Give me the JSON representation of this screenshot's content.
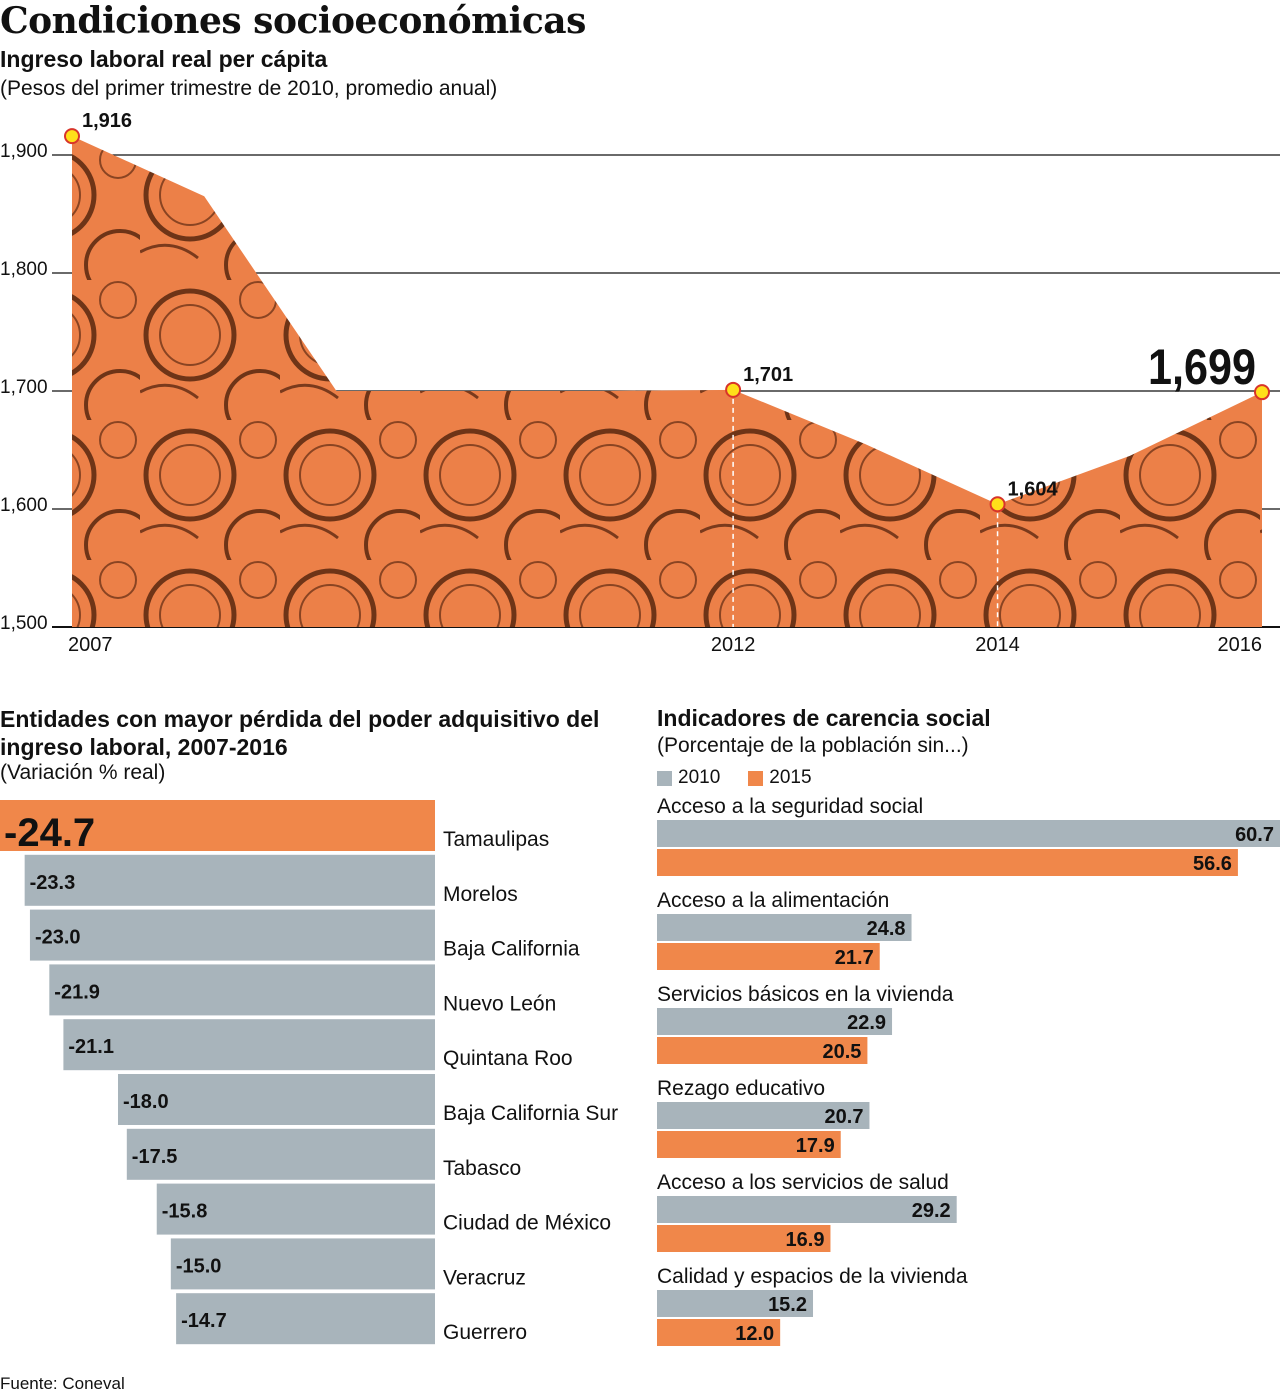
{
  "title": "Condiciones socioeconómicas",
  "source": "Fuente: Coneval",
  "colors": {
    "orange": "#f0874a",
    "gray": "#a8b4bb",
    "point": "#ffe01a",
    "pointStroke": "#d8342a"
  },
  "chart_data": [
    {
      "type": "area",
      "title": "Ingreso laboral real per cápita",
      "subtitle": "(Pesos del primer trimestre de 2010, promedio anual)",
      "ylim": [
        1500,
        1916
      ],
      "yticks": [
        "1,500",
        "1,600",
        "1,700",
        "1,800",
        "1,900"
      ],
      "ytick_values": [
        1500,
        1600,
        1700,
        1800,
        1900
      ],
      "xticks": [
        "2007",
        "2012",
        "2014",
        "2016"
      ],
      "xtick_values": [
        2007,
        2012,
        2014,
        2016
      ],
      "x": [
        2007,
        2008,
        2009,
        2010,
        2011,
        2012,
        2013,
        2014,
        2015,
        2016
      ],
      "values": [
        1916,
        1865,
        1700,
        1700,
        1700,
        1701,
        1655,
        1604,
        1645,
        1699
      ],
      "labels": [
        {
          "x": 2007,
          "text": "1,916"
        },
        {
          "x": 2012,
          "text": "1,701"
        },
        {
          "x": 2014,
          "text": "1,604"
        },
        {
          "x": 2016,
          "text": "1,699"
        }
      ]
    },
    {
      "type": "bar",
      "title": "Entidades con mayor pérdida del poder adquisitivo del ingreso laboral, 2007-2016",
      "subtitle": "(Variación % real)",
      "categories": [
        "Tamaulipas",
        "Morelos",
        "Baja California",
        "Nuevo León",
        "Quintana Roo",
        "Baja California Sur",
        "Tabasco",
        "Ciudad de México",
        "Veracruz",
        "Guerrero"
      ],
      "values": [
        -24.7,
        -23.3,
        -23.0,
        -21.9,
        -21.1,
        -18.0,
        -17.5,
        -15.8,
        -15.0,
        -14.7
      ],
      "value_labels": [
        "-24.7",
        "-23.3",
        "-23.0",
        "-21.9",
        "-21.1",
        "-18.0",
        "-17.5",
        "-15.8",
        "-15.0",
        "-14.7"
      ],
      "highlight": "Tamaulipas"
    },
    {
      "type": "bar",
      "title": "Indicadores de carencia social",
      "subtitle": "(Porcentaje de la población sin...)",
      "legend": [
        "2010",
        "2015"
      ],
      "categories": [
        "Acceso a la seguridad social",
        "Acceso a la alimentación",
        "Servicios básicos en la vivienda",
        "Rezago educativo",
        "Acceso a los servicios de salud",
        "Calidad y espacios de la vivienda"
      ],
      "series": [
        {
          "name": "2010",
          "values": [
            60.7,
            24.8,
            22.9,
            20.7,
            29.2,
            15.2
          ],
          "labels": [
            "60.7",
            "24.8",
            "22.9",
            "20.7",
            "29.2",
            "15.2"
          ]
        },
        {
          "name": "2015",
          "values": [
            56.6,
            21.7,
            20.5,
            17.9,
            16.9,
            12.0
          ],
          "labels": [
            "56.6",
            "21.7",
            "20.5",
            "17.9",
            "16.9",
            "12.0"
          ]
        }
      ]
    }
  ]
}
